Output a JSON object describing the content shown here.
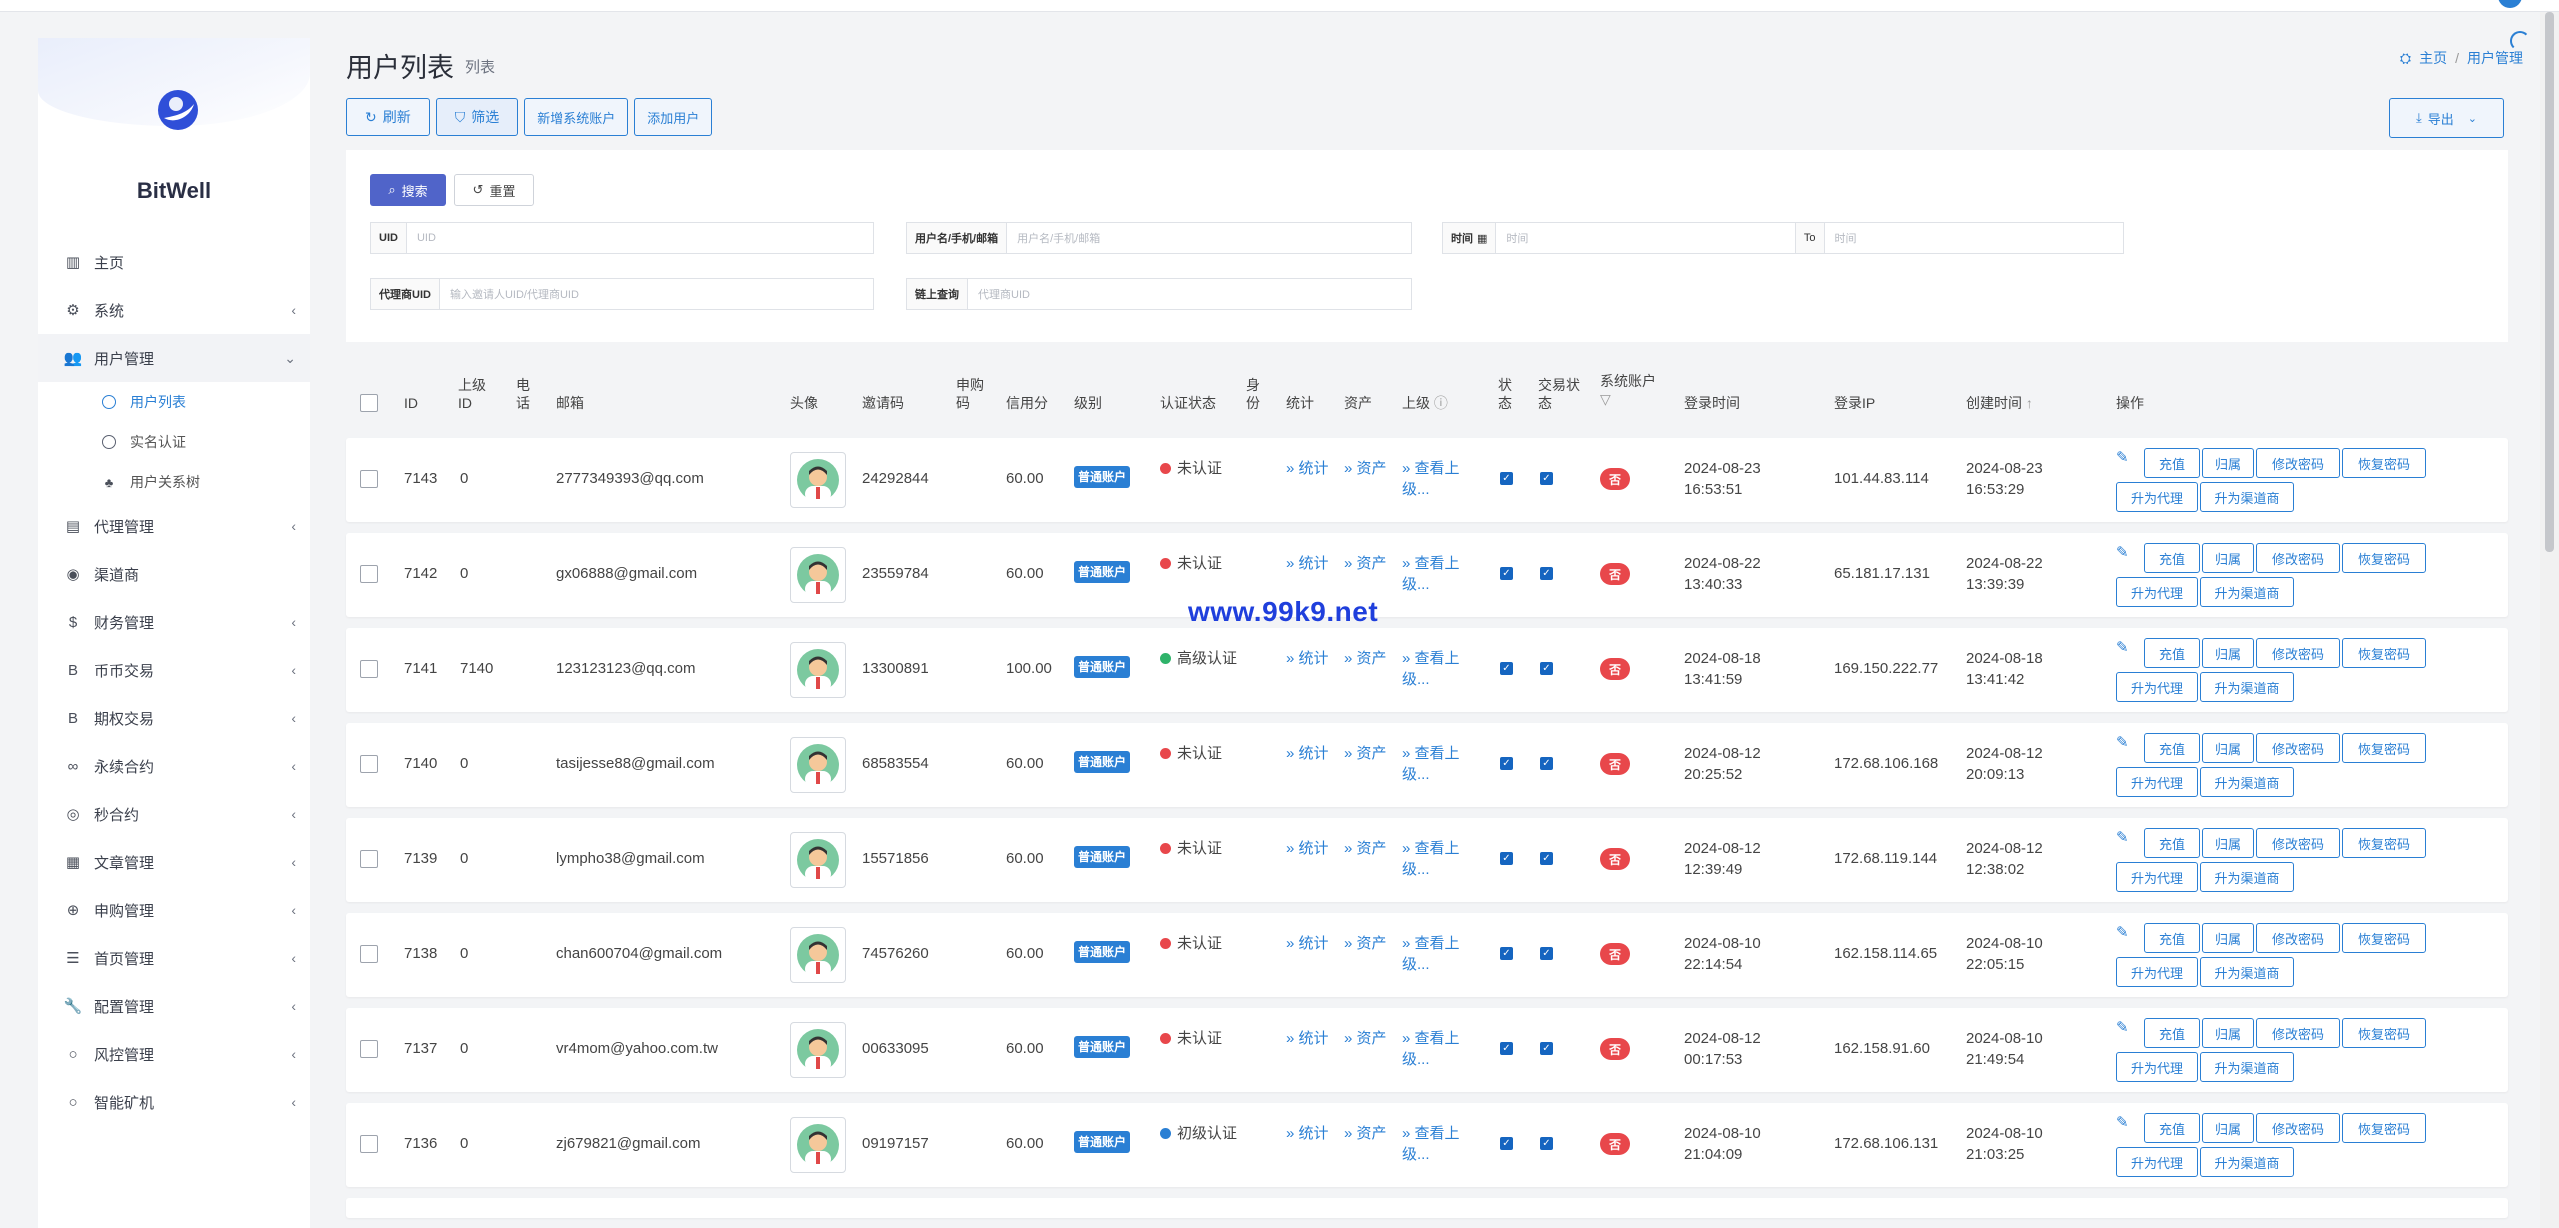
{
  "app": {
    "name": "BitWell"
  },
  "sidebar": {
    "items": [
      {
        "label": "主页",
        "icon": "bar-chart-icon",
        "glyph": "▥"
      },
      {
        "label": "系统",
        "icon": "gear-icon",
        "glyph": "⚙",
        "chevron": "‹"
      },
      {
        "label": "用户管理",
        "icon": "users-icon",
        "glyph": "👥",
        "chevron": "⌄",
        "active": true
      },
      {
        "label": "代理管理",
        "icon": "id-card-icon",
        "glyph": "▤",
        "chevron": "‹"
      },
      {
        "label": "渠道商",
        "icon": "user-circle-icon",
        "glyph": "◉"
      },
      {
        "label": "财务管理",
        "icon": "dollar-icon",
        "glyph": "$",
        "chevron": "‹"
      },
      {
        "label": "币币交易",
        "icon": "bitcoin-icon",
        "glyph": "B",
        "chevron": "‹"
      },
      {
        "label": "期权交易",
        "icon": "bitcoin-icon",
        "glyph": "B",
        "chevron": "‹"
      },
      {
        "label": "永续合约",
        "icon": "link-icon",
        "glyph": "∞",
        "chevron": "‹"
      },
      {
        "label": "秒合约",
        "icon": "target-icon",
        "glyph": "◎",
        "chevron": "‹"
      },
      {
        "label": "文章管理",
        "icon": "newspaper-icon",
        "glyph": "▦",
        "chevron": "‹"
      },
      {
        "label": "申购管理",
        "icon": "lifebuoy-icon",
        "glyph": "⊕",
        "chevron": "‹"
      },
      {
        "label": "首页管理",
        "icon": "list-icon",
        "glyph": "☰",
        "chevron": "‹"
      },
      {
        "label": "配置管理",
        "icon": "wrench-icon",
        "glyph": "🔧",
        "chevron": "‹"
      },
      {
        "label": "风控管理",
        "icon": "circle-icon",
        "glyph": "○",
        "chevron": "‹"
      },
      {
        "label": "智能矿机",
        "icon": "circle-icon",
        "glyph": "○",
        "chevron": "‹"
      }
    ],
    "sub_items": [
      {
        "label": "用户列表",
        "current": true
      },
      {
        "label": "实名认证"
      },
      {
        "label": "用户关系树",
        "tree": true
      }
    ]
  },
  "header": {
    "title": "用户列表",
    "subtitle": "列表"
  },
  "breadcrumb": {
    "home": "主页",
    "sep": "/",
    "current": "用户管理"
  },
  "toolbar": {
    "refresh": "刷新",
    "filter": "筛选",
    "add_system": "新增系统账户",
    "add_user": "添加用户",
    "export": "导出"
  },
  "filter": {
    "search": "搜索",
    "reset": "重置",
    "uid_label": "UID",
    "uid_placeholder": "UID",
    "user_label": "用户名/手机/邮箱",
    "user_placeholder": "用户名/手机/邮箱",
    "time_label": "时间",
    "time_placeholder": "时间",
    "to_label": "To",
    "to_placeholder": "时间",
    "agent_label": "代理商UID",
    "agent_placeholder": "输入邀请人UID/代理商UID",
    "chain_label": "链上查询",
    "chain_placeholder": "代理商UID"
  },
  "table": {
    "columns": {
      "id": "ID",
      "parent_id": "上级ID",
      "phone": "电话",
      "email": "邮箱",
      "avatar": "头像",
      "invite": "邀请码",
      "purchase": "申购码",
      "credit": "信用分",
      "level": "级别",
      "kyc": "认证状态",
      "identity": "身份",
      "stats": "统计",
      "assets": "资产",
      "parent": "上级",
      "state": "状态",
      "trade_state": "交易状态",
      "system_account": "系统账户",
      "login_time": "登录时间",
      "login_ip": "登录IP",
      "created": "创建时间",
      "ops": "操作"
    },
    "link_stats": "» 统计",
    "link_assets": "» 资产",
    "link_parent": "» 查看上级...",
    "no_label": "否",
    "op_labels": {
      "recharge": "充值",
      "attribute": "归属",
      "change_pwd": "修改密码",
      "reset_pwd": "恢复密码",
      "to_agent": "升为代理",
      "to_channel": "升为渠道商"
    },
    "rows": [
      {
        "id": "7143",
        "parent_id": "0",
        "email": "2777349393@qq.com",
        "invite": "24292844",
        "credit": "60.00",
        "level": "普通账户",
        "kyc": "未认证",
        "kyc_color": "#e8474b",
        "login_date": "2024-08-23",
        "login_time": "16:53:51",
        "ip": "101.44.83.114",
        "created_date": "2024-08-23",
        "created_time": "16:53:29"
      },
      {
        "id": "7142",
        "parent_id": "0",
        "email": "gx06888@gmail.com",
        "invite": "23559784",
        "credit": "60.00",
        "level": "普通账户",
        "kyc": "未认证",
        "kyc_color": "#e8474b",
        "login_date": "2024-08-22",
        "login_time": "13:40:33",
        "ip": "65.181.17.131",
        "created_date": "2024-08-22",
        "created_time": "13:39:39"
      },
      {
        "id": "7141",
        "parent_id": "7140",
        "email": "123123123@qq.com",
        "invite": "13300891",
        "credit": "100.00",
        "level": "普通账户",
        "kyc": "高级认证",
        "kyc_color": "#2fb36a",
        "login_date": "2024-08-18",
        "login_time": "13:41:59",
        "ip": "169.150.222.77",
        "created_date": "2024-08-18",
        "created_time": "13:41:42"
      },
      {
        "id": "7140",
        "parent_id": "0",
        "email": "tasijesse88@gmail.com",
        "invite": "68583554",
        "credit": "60.00",
        "level": "普通账户",
        "kyc": "未认证",
        "kyc_color": "#e8474b",
        "login_date": "2024-08-12",
        "login_time": "20:25:52",
        "ip": "172.68.106.168",
        "created_date": "2024-08-12",
        "created_time": "20:09:13"
      },
      {
        "id": "7139",
        "parent_id": "0",
        "email": "lympho38@gmail.com",
        "invite": "15571856",
        "credit": "60.00",
        "level": "普通账户",
        "kyc": "未认证",
        "kyc_color": "#e8474b",
        "login_date": "2024-08-12",
        "login_time": "12:39:49",
        "ip": "172.68.119.144",
        "created_date": "2024-08-12",
        "created_time": "12:38:02"
      },
      {
        "id": "7138",
        "parent_id": "0",
        "email": "chan600704@gmail.com",
        "invite": "74576260",
        "credit": "60.00",
        "level": "普通账户",
        "kyc": "未认证",
        "kyc_color": "#e8474b",
        "login_date": "2024-08-10",
        "login_time": "22:14:54",
        "ip": "162.158.114.65",
        "created_date": "2024-08-10",
        "created_time": "22:05:15"
      },
      {
        "id": "7137",
        "parent_id": "0",
        "email": "vr4mom@yahoo.com.tw",
        "invite": "00633095",
        "credit": "60.00",
        "level": "普通账户",
        "kyc": "未认证",
        "kyc_color": "#e8474b",
        "login_date": "2024-08-12",
        "login_time": "00:17:53",
        "ip": "162.158.91.60",
        "created_date": "2024-08-10",
        "created_time": "21:49:54"
      },
      {
        "id": "7136",
        "parent_id": "0",
        "email": "zj679821@gmail.com",
        "invite": "09197157",
        "credit": "60.00",
        "level": "普通账户",
        "kyc": "初级认证",
        "kyc_color": "#2a7fd4",
        "login_date": "2024-08-10",
        "login_time": "21:04:09",
        "ip": "172.68.106.131",
        "created_date": "2024-08-10",
        "created_time": "21:03:25"
      }
    ]
  },
  "watermark": "www.99k9.net",
  "colors": {
    "accent": "#2a7fd4",
    "danger": "#e8474b",
    "success": "#2fb36a",
    "search": "#5064c9"
  }
}
